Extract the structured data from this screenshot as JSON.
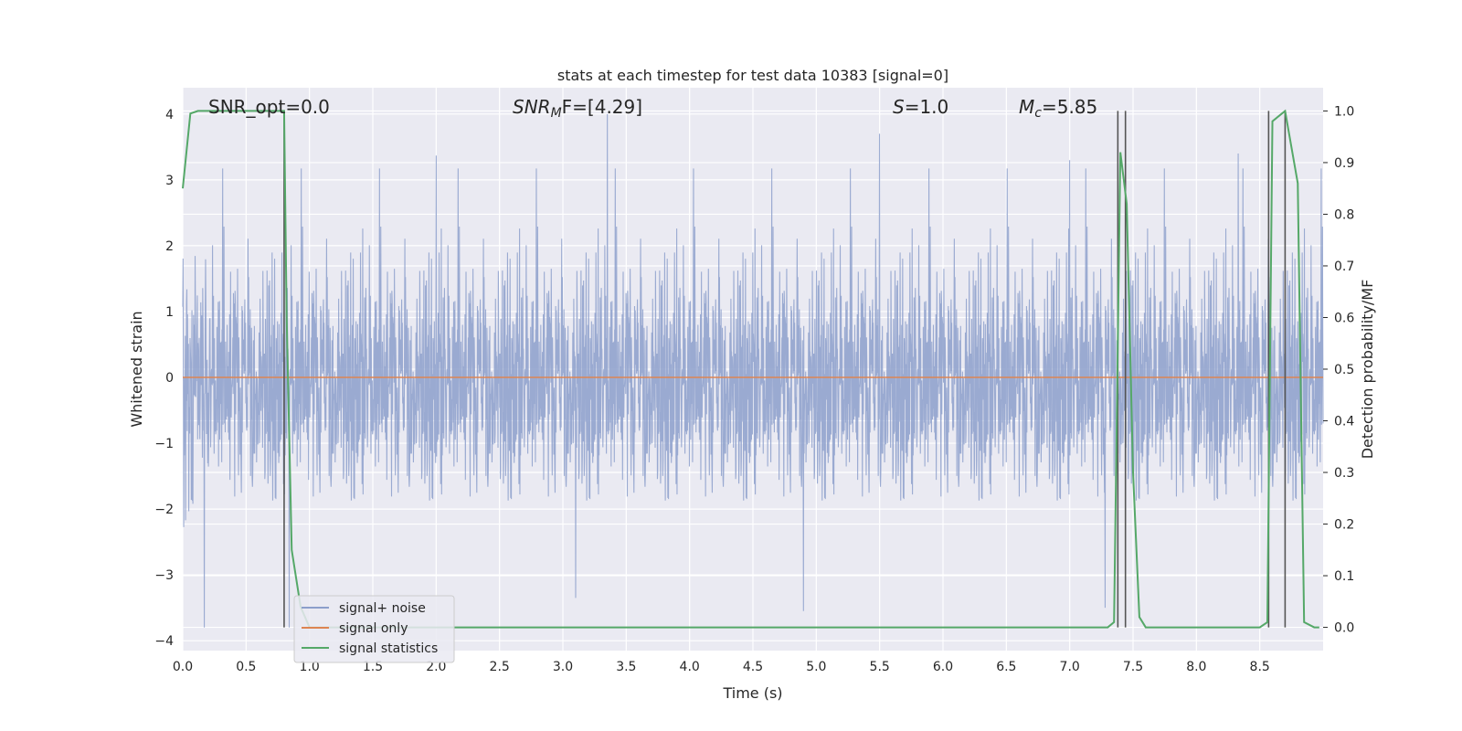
{
  "chart_data": {
    "type": "line",
    "title": "stats at each timestep for test data 10383 [signal=0]",
    "xlabel": "Time (s)",
    "ylabel_left": "Whitened strain",
    "ylabel_right": "Detection probability/MF",
    "xlim": [
      0.0,
      9.0
    ],
    "ylim_left": [
      -4.15,
      4.4
    ],
    "ylim_right": [
      -0.045,
      1.045
    ],
    "xticks": [
      "0.0",
      "0.5",
      "1.0",
      "1.5",
      "2.0",
      "2.5",
      "3.0",
      "3.5",
      "4.0",
      "4.5",
      "5.0",
      "5.5",
      "6.0",
      "6.5",
      "7.0",
      "7.5",
      "8.0",
      "8.5"
    ],
    "yticks_left": [
      "−4",
      "−3",
      "−2",
      "−1",
      "0",
      "1",
      "2",
      "3",
      "4"
    ],
    "yticks_right": [
      "0.0",
      "0.1",
      "0.2",
      "0.3",
      "0.4",
      "0.5",
      "0.6",
      "0.7",
      "0.8",
      "0.9",
      "1.0"
    ],
    "grid": true,
    "background": "#eaeaf2",
    "annotations": {
      "snr_opt": "SNR_opt=0.0",
      "snr_mf_main": "SNR",
      "snr_mf_sub": "M",
      "snr_mf_tail": "F=[4.29]",
      "s_sym": "S",
      "s_val": "=1.0",
      "mc_sym": "M",
      "mc_sub": "c",
      "mc_val": "=5.85"
    },
    "legend": {
      "placement": "lower-left",
      "entries": [
        {
          "label": "signal+ noise",
          "color": "#8c9fcb"
        },
        {
          "label": "signal only",
          "color": "#dd8452"
        },
        {
          "label": "signal statistics",
          "color": "#55a868"
        }
      ]
    },
    "series": [
      {
        "name": "signal+ noise",
        "axis": "left",
        "kind": "noise",
        "color": "#8c9fcb",
        "std": 1.0,
        "x_range": [
          0.0,
          9.0
        ],
        "peak_points": [
          {
            "x": 0.17,
            "y": -3.8
          },
          {
            "x": 0.84,
            "y": -3.8
          },
          {
            "x": 3.35,
            "y": 4.0
          },
          {
            "x": 5.5,
            "y": 3.7
          },
          {
            "x": 4.9,
            "y": -3.55
          },
          {
            "x": 3.1,
            "y": -3.35
          },
          {
            "x": 2.0,
            "y": 3.37
          },
          {
            "x": 7.0,
            "y": 3.3
          },
          {
            "x": 8.33,
            "y": 3.4
          },
          {
            "x": 7.28,
            "y": -3.5
          }
        ]
      },
      {
        "name": "signal only",
        "axis": "left",
        "color": "#dd8452",
        "x": [
          0.0,
          9.0
        ],
        "y": [
          0.0,
          0.0
        ]
      },
      {
        "name": "signal statistics",
        "axis": "right",
        "color": "#55a868",
        "x": [
          0.0,
          0.06,
          0.12,
          0.7,
          0.8,
          0.82,
          0.86,
          0.93,
          1.0,
          7.3,
          7.35,
          7.4,
          7.45,
          7.5,
          7.55,
          7.6,
          8.5,
          8.56,
          8.6,
          8.7,
          8.8,
          8.85,
          8.93,
          8.97
        ],
        "y": [
          0.85,
          0.995,
          1.0,
          1.0,
          1.0,
          0.6,
          0.15,
          0.04,
          0.0,
          0.0,
          0.01,
          0.92,
          0.82,
          0.3,
          0.02,
          0.0,
          0.0,
          0.01,
          0.98,
          1.0,
          0.86,
          0.01,
          0.0,
          0.0
        ]
      }
    ],
    "vertical_markers": {
      "color": "#555555",
      "x": [
        0.8,
        7.38,
        7.44,
        8.57,
        8.7
      ]
    }
  }
}
